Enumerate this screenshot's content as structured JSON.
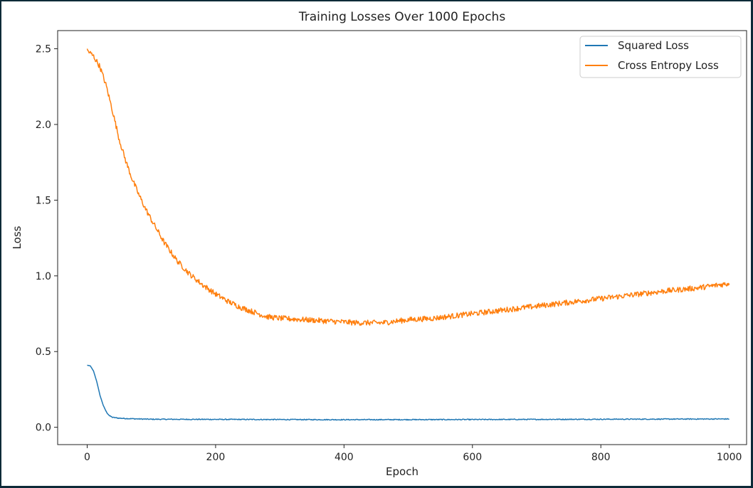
{
  "chart_data": {
    "type": "line",
    "title": "Training Losses Over 1000 Epochs",
    "xlabel": "Epoch",
    "ylabel": "Loss",
    "xlim": [
      -46,
      1027
    ],
    "ylim": [
      -0.1145,
      2.62
    ],
    "xticks": [
      0,
      200,
      400,
      600,
      800,
      1000
    ],
    "xtick_labels": [
      "0",
      "200",
      "400",
      "600",
      "800",
      "1000"
    ],
    "yticks": [
      0.0,
      0.5,
      1.0,
      1.5,
      2.0,
      2.5
    ],
    "ytick_labels": [
      "0.0",
      "0.5",
      "1.0",
      "1.5",
      "2.0",
      "2.5"
    ],
    "grid": false,
    "legend_position": "top-right",
    "series": [
      {
        "name": "Squared Loss",
        "color": "#1f77b4",
        "noise": 0.003,
        "points": [
          [
            0,
            0.41
          ],
          [
            5,
            0.405
          ],
          [
            10,
            0.37
          ],
          [
            15,
            0.3
          ],
          [
            20,
            0.21
          ],
          [
            25,
            0.145
          ],
          [
            30,
            0.1
          ],
          [
            35,
            0.075
          ],
          [
            40,
            0.065
          ],
          [
            50,
            0.06
          ],
          [
            60,
            0.058
          ],
          [
            80,
            0.055
          ],
          [
            100,
            0.053
          ],
          [
            200,
            0.052
          ],
          [
            400,
            0.05
          ],
          [
            600,
            0.051
          ],
          [
            800,
            0.053
          ],
          [
            1000,
            0.055
          ]
        ]
      },
      {
        "name": "Cross Entropy Loss",
        "color": "#ff7f0e",
        "noise": 0.018,
        "points": [
          [
            0,
            2.49
          ],
          [
            10,
            2.45
          ],
          [
            20,
            2.38
          ],
          [
            30,
            2.25
          ],
          [
            40,
            2.08
          ],
          [
            50,
            1.9
          ],
          [
            60,
            1.76
          ],
          [
            70,
            1.64
          ],
          [
            80,
            1.54
          ],
          [
            90,
            1.45
          ],
          [
            100,
            1.37
          ],
          [
            120,
            1.22
          ],
          [
            140,
            1.1
          ],
          [
            160,
            1.01
          ],
          [
            180,
            0.94
          ],
          [
            200,
            0.88
          ],
          [
            220,
            0.83
          ],
          [
            240,
            0.79
          ],
          [
            260,
            0.76
          ],
          [
            280,
            0.73
          ],
          [
            300,
            0.72
          ],
          [
            340,
            0.71
          ],
          [
            380,
            0.7
          ],
          [
            420,
            0.69
          ],
          [
            460,
            0.69
          ],
          [
            500,
            0.71
          ],
          [
            540,
            0.72
          ],
          [
            580,
            0.74
          ],
          [
            620,
            0.76
          ],
          [
            660,
            0.78
          ],
          [
            700,
            0.8
          ],
          [
            760,
            0.83
          ],
          [
            800,
            0.85
          ],
          [
            860,
            0.88
          ],
          [
            900,
            0.9
          ],
          [
            950,
            0.92
          ],
          [
            1000,
            0.95
          ]
        ]
      }
    ]
  }
}
